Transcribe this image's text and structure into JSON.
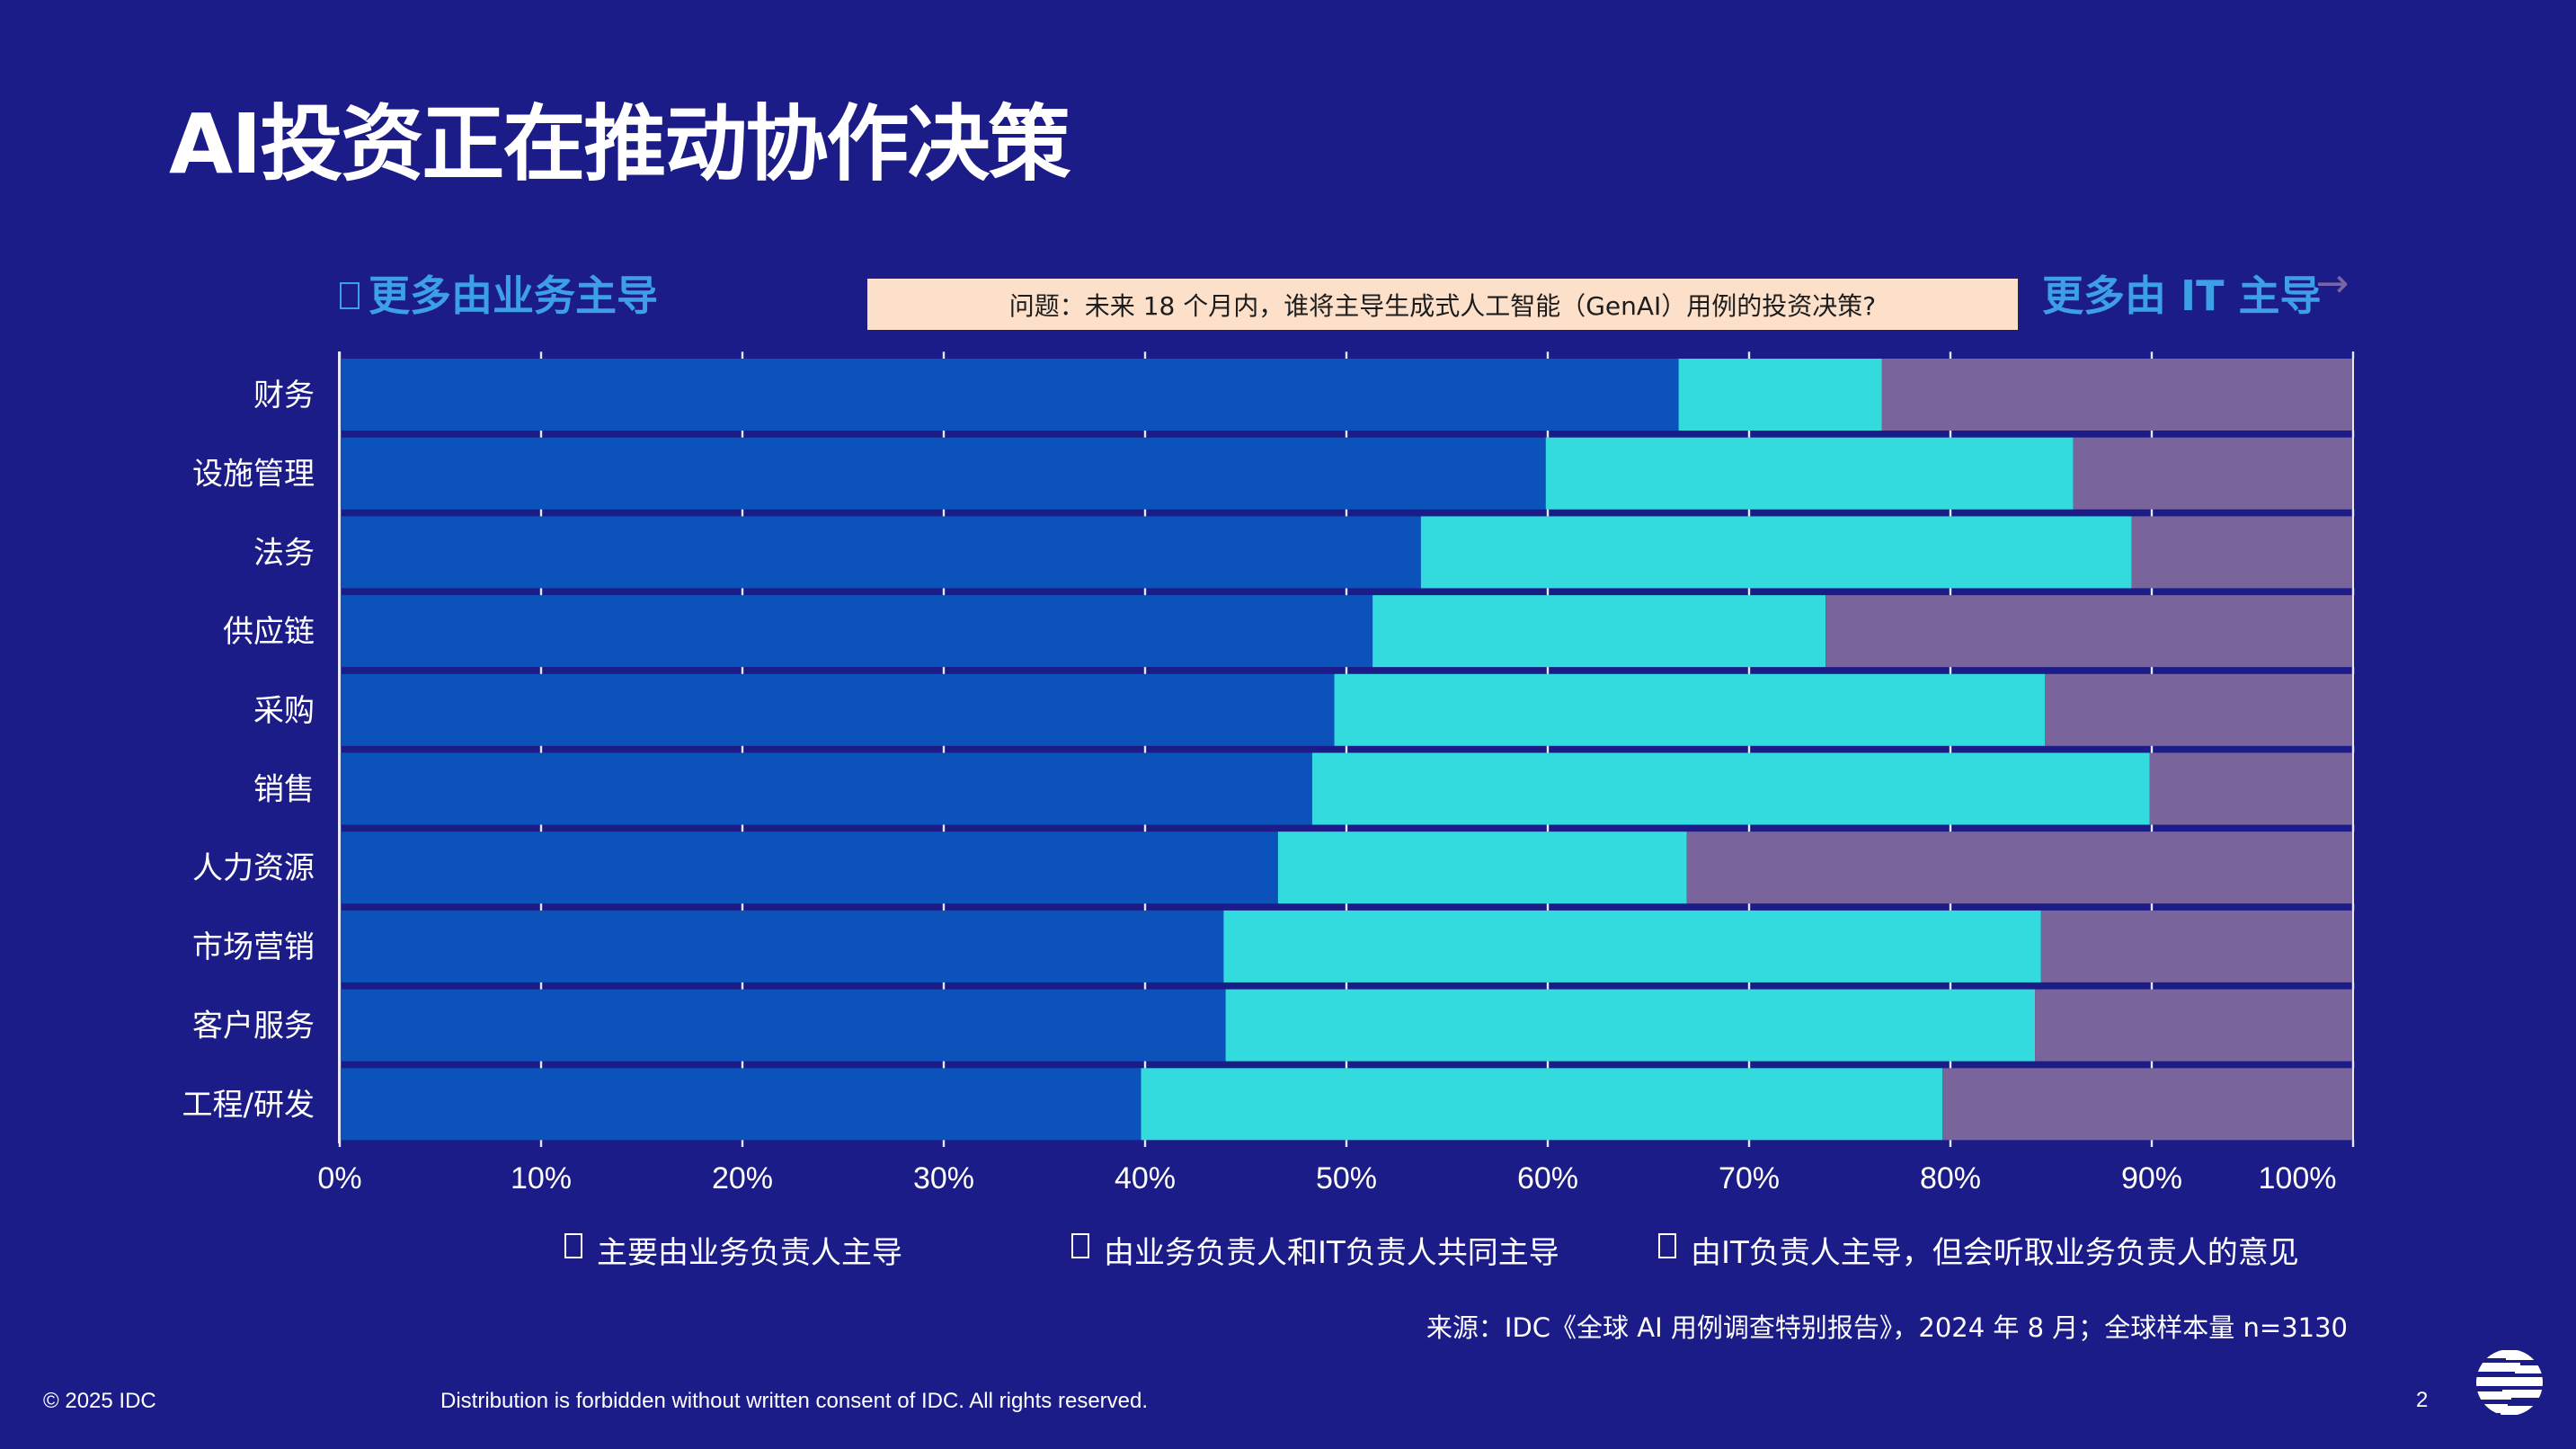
{
  "slide": {
    "title": "AI投资正在推动协作决策",
    "left_direction_label": "更多由业务主导",
    "right_direction_label": "更多由 IT 主导",
    "right_direction_arrow": "→",
    "question": "问题：未来 18 个月内，谁将主导生成式人工智能（GenAI）用例的投资决策?",
    "source": "来源：IDC《全球 AI 用例调查特别报告》，2024 年 8 月；全球样本量 n=3130",
    "footer": {
      "copyright": "© 2025 IDC",
      "distribution": "Distribution is forbidden without written consent of IDC. All rights reserved.",
      "page_number": "2"
    },
    "colors": {
      "background": "#1c1c88",
      "series_business": "#0b53bb",
      "series_joint": "#33dbdf",
      "series_it": "#7a649c",
      "direction_label": "#3d9fe6",
      "question_box": "#fde0c9"
    }
  },
  "chart_data": {
    "type": "bar",
    "orientation": "horizontal",
    "stacked": "100%",
    "title": "",
    "xlabel": "",
    "ylabel": "",
    "xlim": [
      0,
      100
    ],
    "x_ticks": [
      "0%",
      "10%",
      "20%",
      "30%",
      "40%",
      "50%",
      "60%",
      "70%",
      "80%",
      "90%",
      "100%"
    ],
    "grid": false,
    "legend_position": "bottom",
    "categories": [
      "财务",
      "设施管理",
      "法务",
      "供应链",
      "采购",
      "销售",
      "人力资源",
      "市场营销",
      "客户服务",
      "工程/研发"
    ],
    "series": [
      {
        "name": "主要由业务负责人主导",
        "color": "#0b53bb",
        "values": [
          66.5,
          59.9,
          53.7,
          51.3,
          49.4,
          48.3,
          46.6,
          43.9,
          44.0,
          39.8
        ]
      },
      {
        "name": "由业务负责人和IT负责人共同主导",
        "color": "#33dbdf",
        "values": [
          10.1,
          26.2,
          35.3,
          22.5,
          35.3,
          41.6,
          20.3,
          40.6,
          40.2,
          39.8
        ]
      },
      {
        "name": "由IT负责人主导，但会听取业务负责人的意见",
        "color": "#7a649c",
        "values": [
          23.4,
          13.9,
          11.0,
          26.2,
          15.3,
          10.1,
          33.1,
          15.5,
          15.8,
          20.4
        ]
      }
    ]
  }
}
